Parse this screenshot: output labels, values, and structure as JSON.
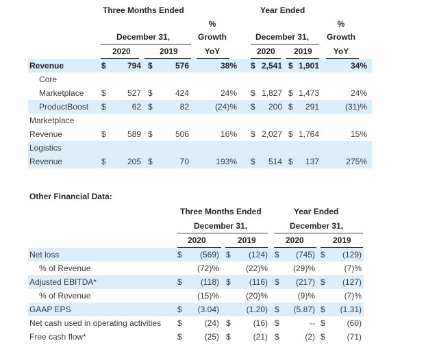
{
  "table1": {
    "header": {
      "three_months": "Three Months Ended",
      "year_ended": "Year Ended",
      "pct1": "%",
      "growth1": "Growth",
      "yoy1": "YoY",
      "pct2": "%",
      "growth2": "Growth",
      "yoy2": "YoY",
      "dec31_a": "December 31,",
      "dec31_b": "December 31,",
      "y2020_a": "2020",
      "y2019_a": "2019",
      "y2020_b": "2020",
      "y2019_b": "2019"
    },
    "rows": [
      {
        "label": "Revenue",
        "label2": "",
        "d1": "$",
        "v1": "794",
        "d2": "$",
        "v2": "576",
        "g1": "38%",
        "d3": "$",
        "v3": "2,541",
        "d4": "$",
        "v4": "1,901",
        "g2": "34%"
      },
      {
        "label": "Core",
        "label2": "Marketplace",
        "d1": "$",
        "v1": "527",
        "d2": "$",
        "v2": "424",
        "g1": "24%",
        "d3": "$",
        "v3": "1,827",
        "d4": "$",
        "v4": "1,473",
        "g2": "24%"
      },
      {
        "label": "ProductBoost",
        "label2": "",
        "d1": "$",
        "v1": "62",
        "d2": "$",
        "v2": "82",
        "g1": "(24)%",
        "d3": "$",
        "v3": "200",
        "d4": "$",
        "v4": "291",
        "g2": "(31)%"
      },
      {
        "label": "Marketplace",
        "label2": "Revenue",
        "d1": "$",
        "v1": "589",
        "d2": "$",
        "v2": "506",
        "g1": "16%",
        "d3": "$",
        "v3": "2,027",
        "d4": "$",
        "v4": "1,764",
        "g2": "15%"
      },
      {
        "label": "Logistics",
        "label2": "Revenue",
        "d1": "$",
        "v1": "205",
        "d2": "$",
        "v2": "70",
        "g1": "193%",
        "d3": "$",
        "v3": "514",
        "d4": "$",
        "v4": "137",
        "g2": "275%"
      }
    ]
  },
  "table2": {
    "title": "Other Financial Data:",
    "header": {
      "three_months": "Three Months Ended",
      "year_ended": "Year Ended",
      "dec31_a": "December 31,",
      "dec31_b": "December 31,",
      "y2020_a": "2020",
      "y2019_a": "2019",
      "y2020_b": "2020",
      "y2019_b": "2019"
    },
    "rows": [
      {
        "label": "Net loss",
        "d1": "$",
        "v1": "(569)",
        "d2": "$",
        "v2": "(124)",
        "d3": "$",
        "v3": "(745)",
        "d4": "$",
        "v4": "(129)"
      },
      {
        "label": "% of Revenue",
        "d1": "",
        "v1": "(72)%",
        "d2": "",
        "v2": "(22)%",
        "d3": "",
        "v3": "(29)%",
        "d4": "",
        "v4": "(7)%"
      },
      {
        "label": "Adjusted EBITDA*",
        "d1": "$",
        "v1": "(118)",
        "d2": "$",
        "v2": "(116)",
        "d3": "$",
        "v3": "(217)",
        "d4": "$",
        "v4": "(127)"
      },
      {
        "label": "% of Revenue",
        "d1": "",
        "v1": "(15)%",
        "d2": "",
        "v2": "(20)%",
        "d3": "",
        "v3": "(9)%",
        "d4": "",
        "v4": "(7)%"
      },
      {
        "label": "GAAP EPS",
        "d1": "$",
        "v1": "(3.04)",
        "d2": "",
        "v2": "(1.20)",
        "d3": "$",
        "v3": "(5.87)",
        "d4": "$",
        "v4": "(1.31)"
      },
      {
        "label": "Net cash used in operating activities",
        "d1": "$",
        "v1": "(24)",
        "d2": "$",
        "v2": "(16)",
        "d3": "$",
        "v3": "--",
        "d4": "$",
        "v4": "(60)"
      },
      {
        "label": "Free cash flow*",
        "d1": "$",
        "v1": "(25)",
        "d2": "$",
        "v2": "(21)",
        "d3": "$",
        "v3": "(2)",
        "d4": "$",
        "v4": "(71)"
      }
    ]
  }
}
